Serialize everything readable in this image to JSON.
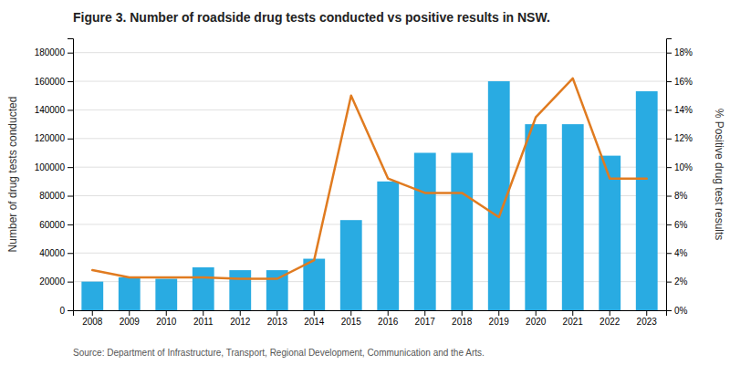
{
  "chart_data": {
    "type": "bar",
    "title": "Figure 3. Number of roadside drug tests conducted vs positive results in NSW.",
    "annotations": [
      "Source: Department of Infrastructure, Transport, Regional Development, Communication and the Arts."
    ],
    "ylabel": "Number of drug tests conducted",
    "y2label": "% Positive drug test results",
    "categories": [
      "2008",
      "2009",
      "2010",
      "2011",
      "2012",
      "2013",
      "2014",
      "2015",
      "2016",
      "2017",
      "2018",
      "2019",
      "2020",
      "2021",
      "2022",
      "2023"
    ],
    "series": [
      {
        "type": "bar",
        "color": "#29ABE2",
        "values": [
          20000,
          23000,
          22000,
          30000,
          28000,
          28000,
          36000,
          63000,
          90000,
          110000,
          110000,
          160000,
          130000,
          130000,
          108000,
          153000
        ]
      },
      {
        "type": "line",
        "axis": "y2",
        "color": "#E07B20",
        "values": [
          2.8,
          2.3,
          2.3,
          2.3,
          2.2,
          2.2,
          3.5,
          15.0,
          9.2,
          8.2,
          8.2,
          6.5,
          13.5,
          16.2,
          9.2,
          9.2
        ]
      }
    ],
    "ylim": [
      0,
      190000
    ],
    "yticks": [
      0,
      20000,
      40000,
      60000,
      80000,
      100000,
      120000,
      140000,
      160000,
      180000
    ],
    "y2lim": [
      0,
      19
    ],
    "y2ticks": [
      {
        "value": 0,
        "label": "0%"
      },
      {
        "value": 2,
        "label": "2%"
      },
      {
        "value": 4,
        "label": "4%"
      },
      {
        "value": 6,
        "label": "6%"
      },
      {
        "value": 8,
        "label": "8%"
      },
      {
        "value": 10,
        "label": "10%"
      },
      {
        "value": 12,
        "label": "12%"
      },
      {
        "value": 14,
        "label": "14%"
      },
      {
        "value": 16,
        "label": "16%"
      },
      {
        "value": 18,
        "label": "18%"
      }
    ],
    "grid": true
  }
}
